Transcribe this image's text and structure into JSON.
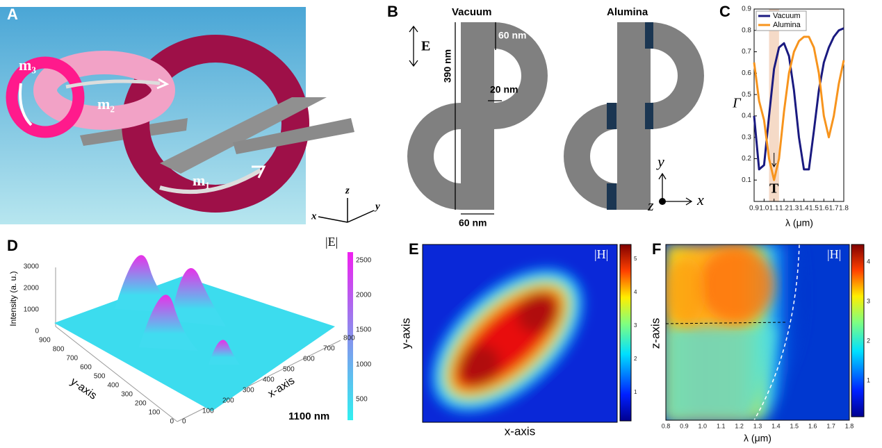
{
  "panels": {
    "A": {
      "label": "A",
      "m1": "m₁",
      "m2": "m₂",
      "m3": "m₃",
      "x": "x",
      "y": "y",
      "z": "z"
    },
    "B": {
      "label": "B",
      "vacuum": "Vacuum",
      "alumina": "Alumina",
      "field": "E",
      "gap_top": "60 nm",
      "height": "390 nm",
      "gap": "20 nm",
      "width": "60 nm",
      "y": "y",
      "x": "x",
      "z": "z"
    },
    "D": {
      "label": "D",
      "colorbar_title": "|E|",
      "z_label": "Intensity (a. u.)",
      "y_label": "y-axis",
      "x_label": "x-axis",
      "wavelength": "1100 nm",
      "z_ticks": [
        0,
        1000,
        2000,
        3000
      ],
      "y_ticks": [
        0,
        100,
        200,
        300,
        400,
        500,
        600,
        700,
        800,
        900
      ],
      "x_ticks": [
        0,
        100,
        200,
        300,
        400,
        500,
        600,
        700,
        800
      ],
      "colorbar_ticks": [
        500,
        1000,
        1500,
        2000,
        2500
      ]
    },
    "E": {
      "label": "E",
      "colorbar_title": "|H|",
      "y_label": "y-axis",
      "x_label": "x-axis",
      "colorbar_ticks": [
        1,
        2,
        3,
        4,
        5
      ]
    },
    "F": {
      "label": "F",
      "colorbar_title": "|H|",
      "y_label": "z-axis",
      "x_label": "λ (μm)",
      "x_ticks": [
        "0.8",
        "0.9",
        "1.0",
        "1.1",
        "1.2",
        "1.3",
        "1.4",
        "1.5",
        "1.6",
        "1.7",
        "1.8"
      ],
      "colorbar_ticks": [
        1,
        2,
        3,
        4
      ]
    }
  },
  "chart_data": {
    "type": "line",
    "panel_label": "C",
    "x_label": "λ (μm)",
    "y_label": "Γ",
    "annotation": "T",
    "x": [
      0.9,
      0.95,
      1.0,
      1.05,
      1.1,
      1.15,
      1.2,
      1.25,
      1.3,
      1.35,
      1.4,
      1.45,
      1.5,
      1.55,
      1.6,
      1.65,
      1.7,
      1.75,
      1.8
    ],
    "series": [
      {
        "name": "Vacuum",
        "color": "#1a1a80",
        "values": [
          0.4,
          0.15,
          0.17,
          0.4,
          0.62,
          0.72,
          0.74,
          0.68,
          0.52,
          0.3,
          0.15,
          0.15,
          0.33,
          0.52,
          0.65,
          0.72,
          0.77,
          0.8,
          0.81
        ]
      },
      {
        "name": "Alumina",
        "color": "#f7941d",
        "values": [
          0.65,
          0.47,
          0.38,
          0.2,
          0.1,
          0.2,
          0.42,
          0.6,
          0.7,
          0.75,
          0.77,
          0.77,
          0.72,
          0.6,
          0.4,
          0.3,
          0.4,
          0.55,
          0.66
        ]
      }
    ],
    "highlight": [
      1.05,
      1.15
    ],
    "xlim": [
      0.9,
      1.8
    ],
    "xticks": [
      0.9,
      {
        "value": 1,
        "label": "1.0"
      },
      1.1,
      1.2,
      1.3,
      1.4,
      1.5,
      1.6,
      1.7,
      1.8
    ],
    "ylim": [
      0,
      0.9
    ],
    "yticks": [
      0.1,
      0.2,
      0.3,
      0.4,
      0.5,
      0.6,
      0.7,
      0.8,
      0.9
    ],
    "legend": "upper left"
  }
}
